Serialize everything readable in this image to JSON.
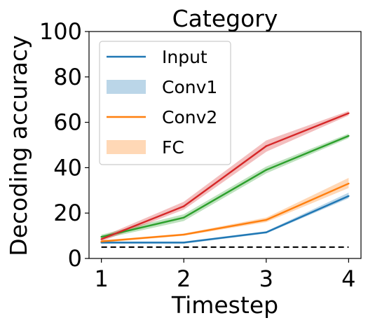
{
  "chart_data": {
    "type": "line",
    "title": "Category",
    "xlabel": "Timestep",
    "ylabel": "Decoding accuracy",
    "x": [
      1,
      2,
      3,
      4
    ],
    "xticks": [
      "1",
      "2",
      "3",
      "4"
    ],
    "ylim": [
      0,
      100
    ],
    "yticks": [
      "0",
      "20",
      "40",
      "60",
      "80",
      "100"
    ],
    "grid": false,
    "legend_position": "top-left",
    "legend": [
      {
        "label": "Input",
        "style": "line",
        "color": "#1f77b4"
      },
      {
        "label": "Conv1",
        "style": "band",
        "color": "#1f77b4"
      },
      {
        "label": "Conv2",
        "style": "line",
        "color": "#ff7f0e"
      },
      {
        "label": "FC",
        "style": "band",
        "color": "#ff7f0e"
      }
    ],
    "series": [
      {
        "color": "#1f77b4",
        "values": [
          7,
          7,
          11.5,
          27.5
        ],
        "lower": [
          6.5,
          6.5,
          11,
          26.5
        ],
        "upper": [
          7.5,
          7.5,
          12,
          29
        ]
      },
      {
        "color": "#ff7f0e",
        "values": [
          7.5,
          10.5,
          17,
          33
        ],
        "lower": [
          7,
          10,
          16,
          31
        ],
        "upper": [
          8,
          11,
          18,
          35.5
        ]
      },
      {
        "color": "#2ca02c",
        "values": [
          9.5,
          18,
          39,
          54
        ],
        "lower": [
          8.5,
          16.5,
          37.5,
          53
        ],
        "upper": [
          10.5,
          19.5,
          40.5,
          55
        ]
      },
      {
        "color": "#d62728",
        "values": [
          8.5,
          23,
          49.5,
          64
        ],
        "lower": [
          7.5,
          21.5,
          47,
          63
        ],
        "upper": [
          9.5,
          25,
          52,
          65
        ]
      }
    ],
    "chance_level": {
      "value": 5,
      "color": "#000000",
      "style": "dashed"
    }
  }
}
